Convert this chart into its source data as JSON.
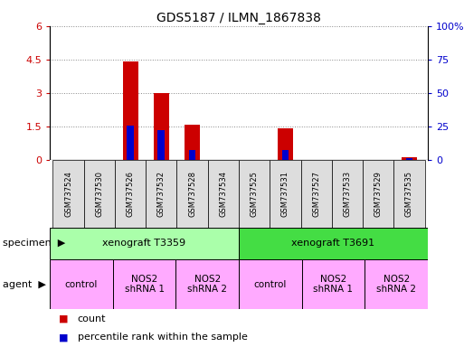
{
  "title": "GDS5187 / ILMN_1867838",
  "samples": [
    "GSM737524",
    "GSM737530",
    "GSM737526",
    "GSM737532",
    "GSM737528",
    "GSM737534",
    "GSM737525",
    "GSM737531",
    "GSM737527",
    "GSM737533",
    "GSM737529",
    "GSM737535"
  ],
  "count_values": [
    0,
    0,
    4.4,
    3.0,
    1.6,
    0,
    0,
    1.4,
    0,
    0,
    0,
    0.12
  ],
  "percentile_values": [
    0,
    0,
    25.8,
    22.5,
    7.5,
    0,
    0,
    7.5,
    0,
    0,
    0,
    1.67
  ],
  "left_ylim": [
    0,
    6
  ],
  "left_yticks": [
    0,
    1.5,
    3,
    4.5,
    6
  ],
  "left_yticklabels": [
    "0",
    "1.5",
    "3",
    "4.5",
    "6"
  ],
  "right_ylim": [
    0,
    100
  ],
  "right_yticks": [
    0,
    25,
    50,
    75,
    100
  ],
  "right_yticklabels": [
    "0",
    "25",
    "50",
    "75",
    "100%"
  ],
  "bar_color": "#cc0000",
  "percentile_color": "#0000cc",
  "bar_width": 0.5,
  "specimen_groups": [
    {
      "label": "xenograft T3359",
      "start": 0,
      "end": 6,
      "color": "#aaffaa"
    },
    {
      "label": "xenograft T3691",
      "start": 6,
      "end": 12,
      "color": "#44dd44"
    }
  ],
  "agent_groups": [
    {
      "label": "control",
      "start": 0,
      "end": 2
    },
    {
      "label": "NOS2\nshRNA 1",
      "start": 2,
      "end": 4
    },
    {
      "label": "NOS2\nshRNA 2",
      "start": 4,
      "end": 6
    },
    {
      "label": "control",
      "start": 6,
      "end": 8
    },
    {
      "label": "NOS2\nshRNA 1",
      "start": 8,
      "end": 10
    },
    {
      "label": "NOS2\nshRNA 2",
      "start": 10,
      "end": 12
    }
  ],
  "agent_color": "#ffaaff",
  "grid_color": "#888888",
  "tick_color_left": "#cc0000",
  "tick_color_right": "#0000cc",
  "sample_box_color": "#dddddd",
  "legend_count_label": "count",
  "legend_percentile_label": "percentile rank within the sample",
  "specimen_label": "specimen",
  "agent_label": "agent"
}
